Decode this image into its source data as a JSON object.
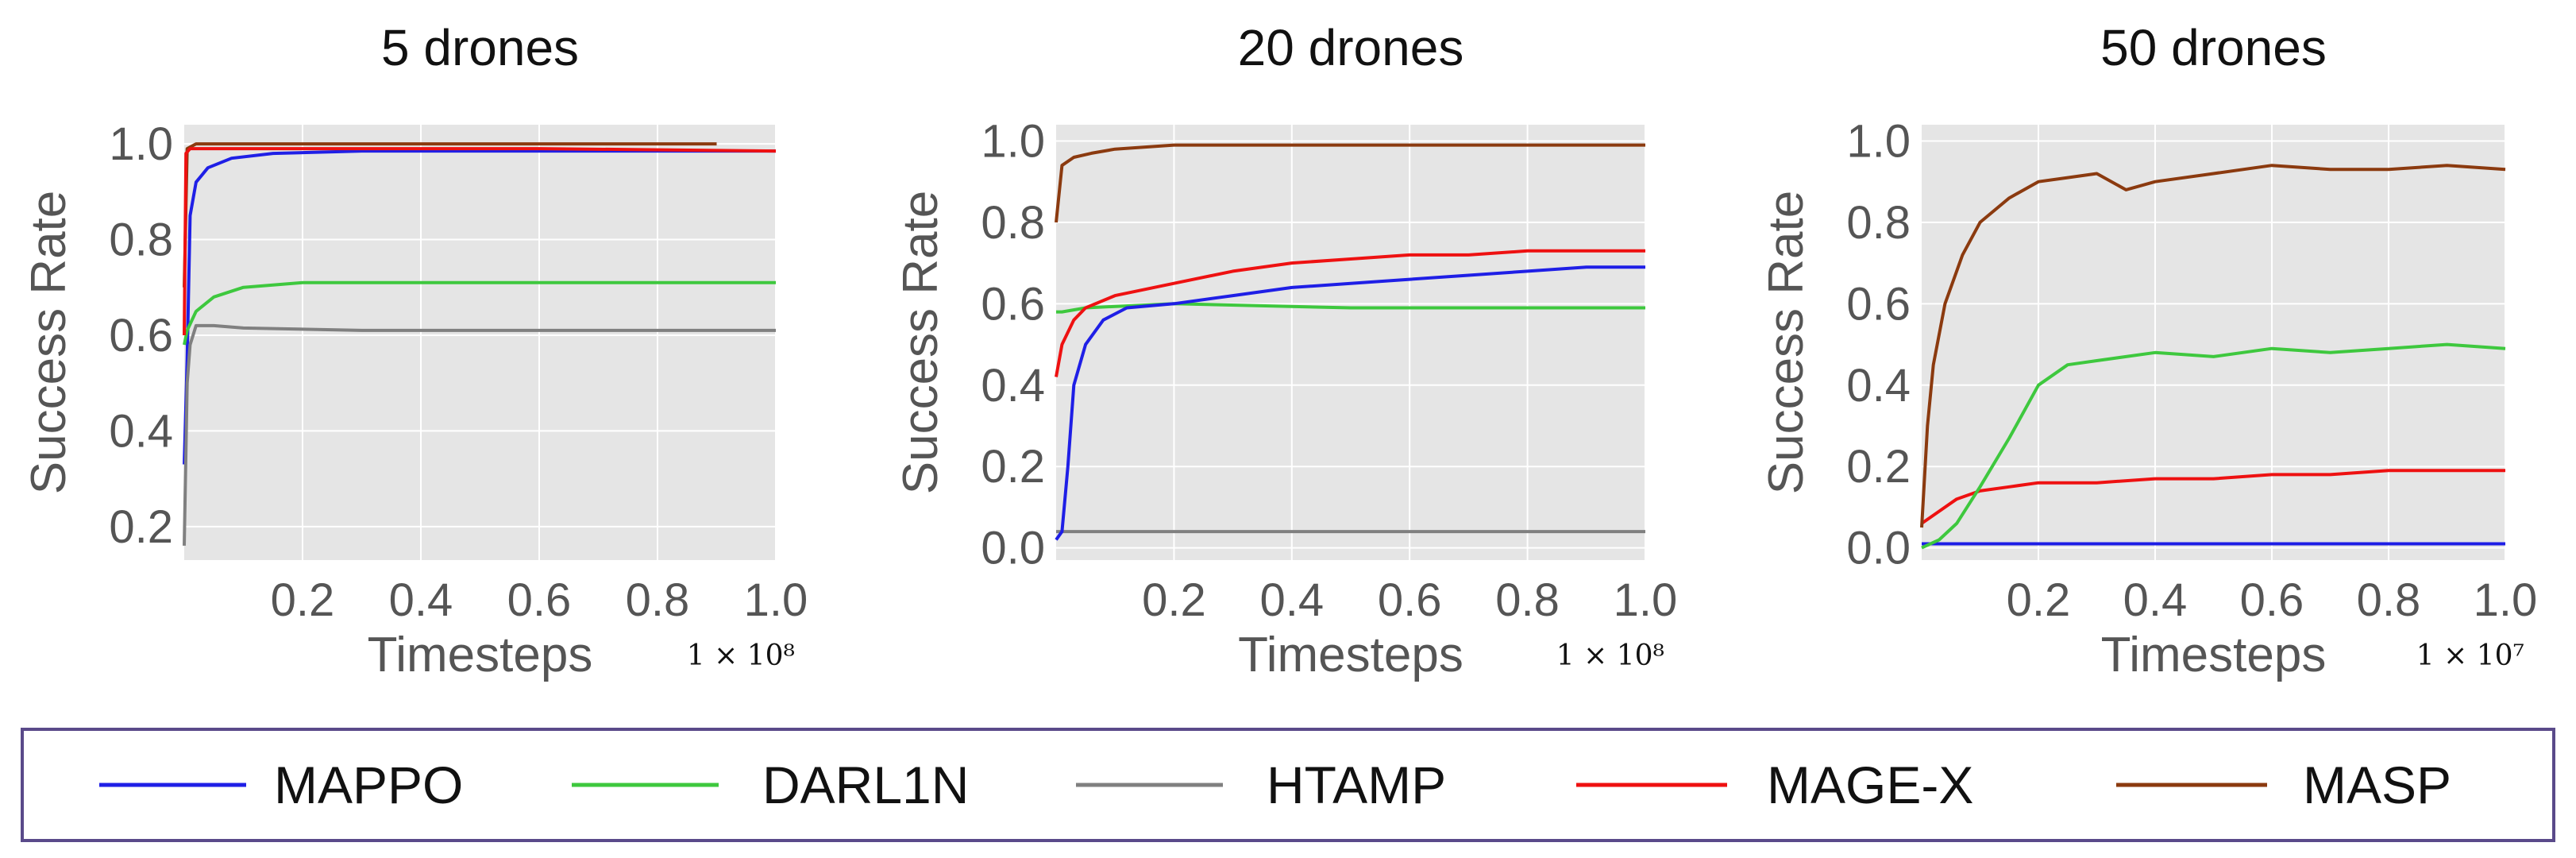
{
  "legend": {
    "entries": [
      {
        "name": "MAPPO",
        "color": "#1f1fe6"
      },
      {
        "name": "DARL1N",
        "color": "#3ec83e"
      },
      {
        "name": "HTAMP",
        "color": "#808080"
      },
      {
        "name": "MAGE-X",
        "color": "#ee1111"
      },
      {
        "name": "MASP",
        "color": "#8b3a0f"
      }
    ]
  },
  "chart_data": [
    {
      "type": "line",
      "title": "5 drones",
      "xlabel": "Timesteps",
      "ylabel": "Success Rate",
      "x_multiplier": "1 × 10⁸",
      "xlim": [
        0,
        1.0
      ],
      "ylim": [
        0.13,
        1.04
      ],
      "xticks": [
        "0.2",
        "0.4",
        "0.6",
        "0.8",
        "1.0"
      ],
      "yticks": [
        "0.2",
        "0.4",
        "0.6",
        "0.8",
        "1.0"
      ],
      "grid": true,
      "series": [
        {
          "name": "MASP",
          "x": [
            0,
            0.005,
            0.02,
            0.1,
            0.5,
            0.9
          ],
          "y": [
            0.7,
            0.99,
            1.0,
            1.0,
            1.0,
            1.0
          ],
          "color": "#8b3a0f"
        },
        {
          "name": "MAPPO",
          "x": [
            0,
            0.005,
            0.01,
            0.02,
            0.04,
            0.08,
            0.15,
            0.3,
            0.5,
            0.7,
            0.85,
            1.0
          ],
          "y": [
            0.33,
            0.55,
            0.85,
            0.92,
            0.95,
            0.97,
            0.98,
            0.985,
            0.985,
            0.985,
            0.985,
            0.985
          ],
          "color": "#1f1fe6"
        },
        {
          "name": "DARL1N",
          "x": [
            0,
            0.005,
            0.02,
            0.05,
            0.1,
            0.2,
            0.4,
            0.6,
            0.8,
            1.0
          ],
          "y": [
            0.58,
            0.61,
            0.65,
            0.68,
            0.7,
            0.71,
            0.71,
            0.71,
            0.71,
            0.71
          ],
          "color": "#3ec83e"
        },
        {
          "name": "HTAMP",
          "x": [
            0,
            0.005,
            0.01,
            0.02,
            0.05,
            0.1,
            0.3,
            0.6,
            1.0
          ],
          "y": [
            0.16,
            0.5,
            0.58,
            0.62,
            0.62,
            0.615,
            0.61,
            0.61,
            0.61
          ],
          "color": "#808080"
        },
        {
          "name": "MAGE-X",
          "x": [
            0,
            0.003,
            0.01,
            0.05,
            0.3,
            0.6,
            1.0
          ],
          "y": [
            0.6,
            0.98,
            0.99,
            0.99,
            0.99,
            0.99,
            0.985
          ],
          "color": "#ee1111"
        }
      ]
    },
    {
      "type": "line",
      "title": "20 drones",
      "xlabel": "Timesteps",
      "ylabel": "Success Rate",
      "x_multiplier": "1 × 10⁸",
      "xlim": [
        0,
        1.0
      ],
      "ylim": [
        -0.03,
        1.04
      ],
      "xticks": [
        "0.2",
        "0.4",
        "0.6",
        "0.8",
        "1.0"
      ],
      "yticks": [
        "0.0",
        "0.2",
        "0.4",
        "0.6",
        "0.8",
        "1.0"
      ],
      "grid": true,
      "series": [
        {
          "name": "HTAMP",
          "x": [
            0,
            0.05,
            0.3,
            0.6,
            1.0
          ],
          "y": [
            0.04,
            0.04,
            0.04,
            0.04,
            0.04
          ],
          "color": "#808080"
        },
        {
          "name": "DARL1N",
          "x": [
            0,
            0.01,
            0.05,
            0.2,
            0.5,
            0.8,
            1.0
          ],
          "y": [
            0.58,
            0.58,
            0.59,
            0.6,
            0.59,
            0.59,
            0.59
          ],
          "color": "#3ec83e"
        },
        {
          "name": "MAPPO",
          "x": [
            0,
            0.01,
            0.02,
            0.03,
            0.05,
            0.08,
            0.12,
            0.2,
            0.3,
            0.4,
            0.5,
            0.6,
            0.7,
            0.8,
            0.9,
            1.0
          ],
          "y": [
            0.02,
            0.04,
            0.2,
            0.4,
            0.5,
            0.56,
            0.59,
            0.6,
            0.62,
            0.64,
            0.65,
            0.66,
            0.67,
            0.68,
            0.69,
            0.69
          ],
          "color": "#1f1fe6"
        },
        {
          "name": "MAGE-X",
          "x": [
            0,
            0.01,
            0.03,
            0.05,
            0.1,
            0.2,
            0.3,
            0.4,
            0.5,
            0.6,
            0.7,
            0.8,
            0.9,
            1.0
          ],
          "y": [
            0.42,
            0.5,
            0.56,
            0.59,
            0.62,
            0.65,
            0.68,
            0.7,
            0.71,
            0.72,
            0.72,
            0.73,
            0.73,
            0.73
          ],
          "color": "#ee1111"
        },
        {
          "name": "MASP",
          "x": [
            0,
            0.01,
            0.03,
            0.06,
            0.1,
            0.2,
            0.4,
            0.6,
            0.8,
            1.0
          ],
          "y": [
            0.8,
            0.94,
            0.96,
            0.97,
            0.98,
            0.99,
            0.99,
            0.99,
            0.99,
            0.99
          ],
          "color": "#8b3a0f"
        }
      ]
    },
    {
      "type": "line",
      "title": "50 drones",
      "xlabel": "Timesteps",
      "ylabel": "Success Rate",
      "x_multiplier": "1 × 10⁷",
      "xlim": [
        0,
        1.0
      ],
      "ylim": [
        -0.03,
        1.04
      ],
      "xticks": [
        "0.2",
        "0.4",
        "0.6",
        "0.8",
        "1.0"
      ],
      "yticks": [
        "0.0",
        "0.2",
        "0.4",
        "0.6",
        "0.8",
        "1.0"
      ],
      "grid": true,
      "series": [
        {
          "name": "HTAMP",
          "x": [
            0,
            0.2,
            0.5,
            0.8,
            1.0
          ],
          "y": [
            0.01,
            0.01,
            0.01,
            0.01,
            0.01
          ],
          "color": "#808080"
        },
        {
          "name": "MAPPO",
          "x": [
            0,
            0.2,
            0.5,
            0.8,
            1.0
          ],
          "y": [
            0.01,
            0.01,
            0.01,
            0.01,
            0.01
          ],
          "color": "#1f1fe6"
        },
        {
          "name": "MAGE-X",
          "x": [
            0,
            0.03,
            0.06,
            0.1,
            0.15,
            0.2,
            0.3,
            0.4,
            0.5,
            0.6,
            0.7,
            0.8,
            0.9,
            1.0
          ],
          "y": [
            0.06,
            0.09,
            0.12,
            0.14,
            0.15,
            0.16,
            0.16,
            0.17,
            0.17,
            0.18,
            0.18,
            0.19,
            0.19,
            0.19
          ],
          "color": "#ee1111"
        },
        {
          "name": "DARL1N",
          "x": [
            0,
            0.03,
            0.06,
            0.1,
            0.15,
            0.2,
            0.25,
            0.3,
            0.4,
            0.5,
            0.6,
            0.7,
            0.8,
            0.9,
            1.0
          ],
          "y": [
            0.0,
            0.02,
            0.06,
            0.15,
            0.27,
            0.4,
            0.45,
            0.46,
            0.48,
            0.47,
            0.49,
            0.48,
            0.49,
            0.5,
            0.49
          ],
          "color": "#3ec83e"
        },
        {
          "name": "MASP",
          "x": [
            0,
            0.01,
            0.02,
            0.04,
            0.07,
            0.1,
            0.15,
            0.2,
            0.25,
            0.3,
            0.35,
            0.4,
            0.5,
            0.6,
            0.7,
            0.8,
            0.9,
            1.0
          ],
          "y": [
            0.05,
            0.3,
            0.45,
            0.6,
            0.72,
            0.8,
            0.86,
            0.9,
            0.91,
            0.92,
            0.88,
            0.9,
            0.92,
            0.94,
            0.93,
            0.93,
            0.94,
            0.93
          ],
          "color": "#8b3a0f"
        }
      ]
    }
  ]
}
